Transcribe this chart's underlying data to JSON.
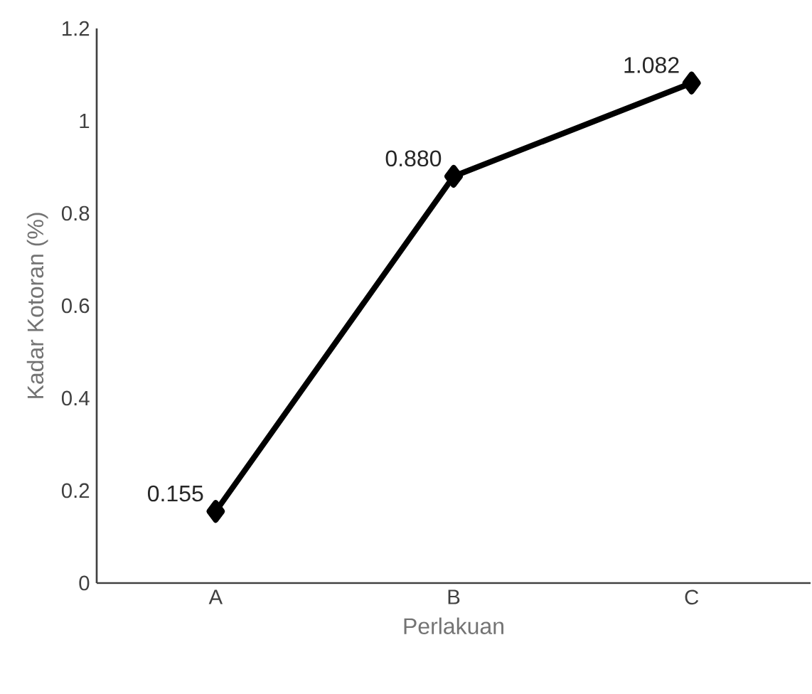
{
  "chart_data": {
    "type": "line",
    "xlabel": "Perlakuan",
    "ylabel": "Kadar Kotoran (%)",
    "categories": [
      "A",
      "B",
      "C"
    ],
    "values": [
      0.155,
      0.88,
      1.082
    ],
    "value_labels": [
      "0.155",
      "0.880",
      "1.082"
    ],
    "color": "#000000",
    "marker": "diamond",
    "line_style": "solid",
    "ylim": [
      0,
      1.2
    ],
    "yticks": [
      0,
      0.2,
      0.4,
      0.6,
      0.8,
      1,
      1.2
    ]
  }
}
